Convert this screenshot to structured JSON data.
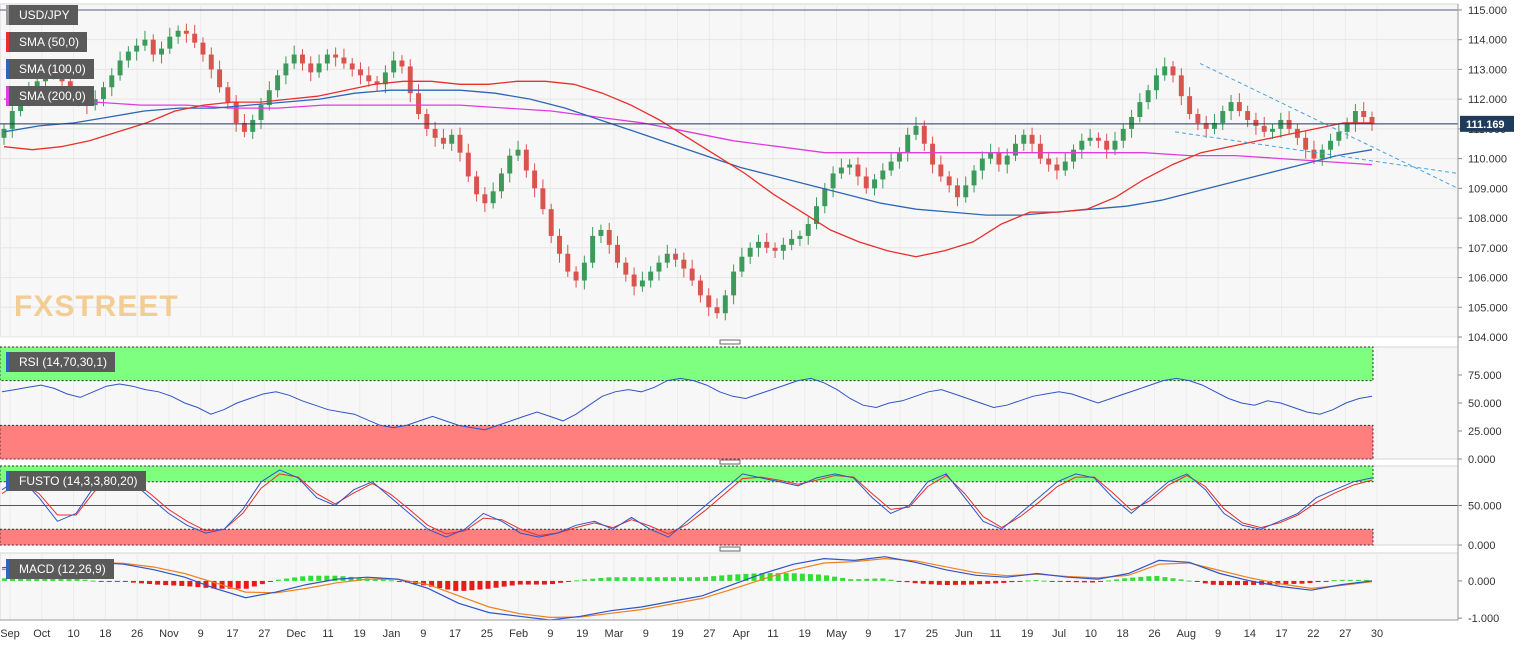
{
  "chart_data": [
    {
      "type": "candlestick",
      "title": "USD/JPY",
      "watermark": "FXSTREET",
      "ylim": [
        104.0,
        115.2
      ],
      "yticks": [
        "115.000",
        "114.000",
        "113.000",
        "112.000",
        "111.000",
        "110.000",
        "109.000",
        "108.000",
        "107.000",
        "106.000",
        "105.000",
        "104.000"
      ],
      "last_price": "111.169",
      "xticks": [
        "Sep",
        "Oct",
        "10",
        "18",
        "26",
        "Nov",
        "9",
        "17",
        "27",
        "Dec",
        "11",
        "19",
        "Jan",
        "9",
        "17",
        "25",
        "Feb",
        "9",
        "19",
        "Mar",
        "9",
        "19",
        "27",
        "Apr",
        "11",
        "19",
        "May",
        "9",
        "17",
        "25",
        "Jun",
        "11",
        "19",
        "Jul",
        "10",
        "18",
        "26",
        "Aug",
        "9",
        "14",
        "17",
        "22",
        "27",
        "30"
      ],
      "legend": [
        {
          "name": "SMA (50,0)",
          "color": "#e8302c"
        },
        {
          "name": "SMA (100,0)",
          "color": "#2f66b8"
        },
        {
          "name": "SMA (200,0)",
          "color": "#e03ce0"
        }
      ],
      "closes": [
        111.0,
        111.6,
        112.0,
        112.4,
        112.6,
        112.9,
        113.0,
        112.6,
        112.2,
        112.0,
        111.8,
        112.0,
        112.4,
        112.8,
        113.3,
        113.6,
        113.8,
        114.0,
        113.5,
        113.7,
        114.1,
        114.3,
        114.2,
        113.9,
        113.5,
        113.0,
        112.4,
        111.9,
        111.2,
        110.9,
        111.3,
        111.8,
        112.3,
        112.8,
        113.2,
        113.5,
        113.2,
        112.9,
        113.2,
        113.5,
        113.4,
        113.2,
        113.0,
        112.8,
        112.6,
        112.5,
        112.9,
        113.3,
        113.1,
        112.2,
        111.5,
        111.0,
        110.7,
        110.5,
        110.8,
        110.2,
        109.4,
        108.8,
        108.5,
        108.9,
        109.5,
        110.1,
        110.3,
        109.6,
        109.0,
        108.3,
        107.4,
        106.8,
        106.2,
        105.9,
        106.5,
        107.4,
        107.6,
        107.1,
        106.5,
        106.1,
        105.7,
        105.9,
        106.2,
        106.5,
        106.8,
        106.6,
        106.3,
        105.9,
        105.4,
        105.0,
        104.8,
        105.4,
        106.2,
        106.7,
        107.0,
        107.2,
        107.0,
        106.9,
        107.1,
        107.3,
        107.4,
        107.8,
        108.4,
        109.0,
        109.5,
        109.7,
        109.8,
        109.4,
        109.0,
        109.3,
        109.6,
        109.9,
        110.2,
        110.8,
        111.1,
        110.5,
        109.8,
        109.4,
        109.1,
        108.7,
        109.1,
        109.6,
        110.0,
        110.2,
        109.8,
        110.1,
        110.5,
        110.8,
        110.5,
        110.0,
        109.8,
        109.6,
        109.9,
        110.3,
        110.6,
        110.7,
        110.6,
        110.3,
        110.6,
        111.0,
        111.4,
        111.9,
        112.3,
        112.8,
        113.1,
        112.8,
        112.1,
        111.5,
        111.2,
        111.0,
        111.2,
        111.6,
        111.9,
        111.6,
        111.3,
        111.1,
        110.9,
        111.0,
        111.3,
        111.0,
        110.7,
        110.3,
        110.0,
        110.3,
        110.6,
        110.9,
        111.2,
        111.6,
        111.4,
        111.169
      ],
      "sma50": [
        110.4,
        110.3,
        110.4,
        110.6,
        110.9,
        111.2,
        111.6,
        111.8,
        111.9,
        111.9,
        112.0,
        112.1,
        112.3,
        112.5,
        112.6,
        112.6,
        112.5,
        112.5,
        112.6,
        112.6,
        112.5,
        112.2,
        111.8,
        111.3,
        110.7,
        110.1,
        109.5,
        108.8,
        108.2,
        107.6,
        107.2,
        106.9,
        106.7,
        106.9,
        107.2,
        107.8,
        108.2,
        108.2,
        108.3,
        108.7,
        109.3,
        109.8,
        110.2,
        110.4,
        110.6,
        110.8,
        111.0,
        111.2,
        111.2
      ],
      "sma100": [
        110.9,
        111.1,
        111.2,
        111.4,
        111.6,
        111.7,
        111.7,
        111.8,
        111.9,
        112.0,
        112.2,
        112.3,
        112.3,
        112.3,
        112.2,
        112.0,
        111.7,
        111.3,
        110.9,
        110.5,
        110.1,
        109.7,
        109.4,
        109.1,
        108.8,
        108.5,
        108.3,
        108.2,
        108.1,
        108.1,
        108.2,
        108.3,
        108.4,
        108.6,
        108.9,
        109.2,
        109.5,
        109.8,
        110.1,
        110.3
      ],
      "sma200": [
        112.0,
        112.0,
        111.9,
        111.8,
        111.8,
        111.7,
        111.7,
        111.8,
        111.8,
        111.8,
        111.8,
        111.7,
        111.6,
        111.4,
        111.2,
        110.9,
        110.6,
        110.4,
        110.2,
        110.2,
        110.2,
        110.2,
        110.2,
        110.2,
        110.2,
        110.2,
        110.1,
        110.1,
        110.0,
        109.9,
        109.8
      ],
      "trendline_upper_from": 113.2,
      "trendline_lower_from": 110.9
    },
    {
      "type": "line",
      "title": "RSI (14,70,30,1)",
      "ylim": [
        0,
        100
      ],
      "yticks": [
        "75.000",
        "50.000",
        "25.000",
        "0.000"
      ],
      "overbought": 70,
      "oversold": 30,
      "values": [
        60,
        62,
        64,
        66,
        63,
        58,
        55,
        60,
        65,
        67,
        65,
        62,
        60,
        56,
        50,
        46,
        40,
        44,
        50,
        54,
        58,
        60,
        57,
        52,
        48,
        44,
        42,
        40,
        35,
        30,
        28,
        30,
        34,
        38,
        34,
        30,
        28,
        26,
        30,
        34,
        38,
        42,
        38,
        34,
        40,
        48,
        56,
        60,
        62,
        60,
        64,
        70,
        72,
        70,
        66,
        60,
        56,
        54,
        58,
        62,
        66,
        70,
        72,
        68,
        62,
        54,
        48,
        46,
        50,
        52,
        56,
        60,
        62,
        58,
        54,
        50,
        46,
        48,
        52,
        56,
        58,
        60,
        58,
        54,
        50,
        54,
        58,
        62,
        66,
        70,
        72,
        70,
        66,
        60,
        54,
        50,
        48,
        52,
        50,
        46,
        42,
        40,
        44,
        50,
        54,
        56
      ]
    },
    {
      "type": "line",
      "title": "FUSTO (14,3,3,80,20)",
      "ylim": [
        0,
        100
      ],
      "yticks": [
        "50.000",
        "0.000"
      ],
      "overbought": 80,
      "oversold": 20,
      "k": [
        70,
        85,
        60,
        30,
        40,
        75,
        90,
        80,
        60,
        40,
        25,
        15,
        20,
        45,
        80,
        95,
        85,
        60,
        50,
        70,
        80,
        60,
        40,
        20,
        10,
        20,
        40,
        30,
        15,
        10,
        15,
        25,
        30,
        20,
        35,
        20,
        10,
        30,
        50,
        70,
        90,
        85,
        80,
        75,
        85,
        90,
        85,
        60,
        40,
        50,
        80,
        90,
        60,
        30,
        20,
        40,
        60,
        80,
        90,
        85,
        60,
        40,
        60,
        80,
        90,
        70,
        40,
        25,
        20,
        30,
        40,
        60,
        70,
        80,
        85
      ],
      "d": [
        65,
        80,
        65,
        38,
        38,
        68,
        85,
        82,
        65,
        45,
        30,
        18,
        20,
        40,
        72,
        90,
        86,
        65,
        52,
        66,
        78,
        64,
        45,
        25,
        14,
        18,
        34,
        32,
        20,
        12,
        15,
        22,
        28,
        22,
        32,
        24,
        14,
        26,
        44,
        64,
        84,
        86,
        82,
        77,
        82,
        88,
        86,
        65,
        45,
        48,
        74,
        88,
        65,
        36,
        22,
        36,
        54,
        74,
        86,
        86,
        66,
        44,
        56,
        76,
        88,
        74,
        46,
        28,
        22,
        28,
        38,
        54,
        66,
        76,
        82
      ]
    },
    {
      "type": "bar+line",
      "title": "MACD (12,26,9)",
      "ylim": [
        -1.05,
        0.75
      ],
      "yticks": [
        "0.000",
        "-1.000"
      ],
      "macd": [
        0.35,
        0.45,
        0.55,
        0.5,
        0.45,
        0.3,
        0.1,
        -0.2,
        -0.45,
        -0.3,
        -0.1,
        0.05,
        0.1,
        0.05,
        -0.2,
        -0.6,
        -0.85,
        -0.95,
        -1.05,
        -0.95,
        -0.8,
        -0.7,
        -0.55,
        -0.4,
        -0.1,
        0.2,
        0.45,
        0.6,
        0.55,
        0.65,
        0.5,
        0.3,
        0.15,
        0.1,
        0.2,
        0.1,
        0.05,
        0.2,
        0.55,
        0.5,
        0.2,
        0.0,
        -0.15,
        -0.25,
        -0.1,
        0.0
      ],
      "signal": [
        0.3,
        0.4,
        0.48,
        0.5,
        0.47,
        0.37,
        0.2,
        -0.05,
        -0.3,
        -0.32,
        -0.2,
        -0.05,
        0.05,
        0.05,
        -0.1,
        -0.4,
        -0.7,
        -0.88,
        -0.98,
        -0.97,
        -0.87,
        -0.77,
        -0.62,
        -0.47,
        -0.22,
        0.05,
        0.3,
        0.48,
        0.52,
        0.6,
        0.54,
        0.38,
        0.22,
        0.14,
        0.18,
        0.12,
        0.08,
        0.15,
        0.45,
        0.48,
        0.28,
        0.08,
        -0.08,
        -0.2,
        -0.12,
        -0.02
      ]
    }
  ]
}
